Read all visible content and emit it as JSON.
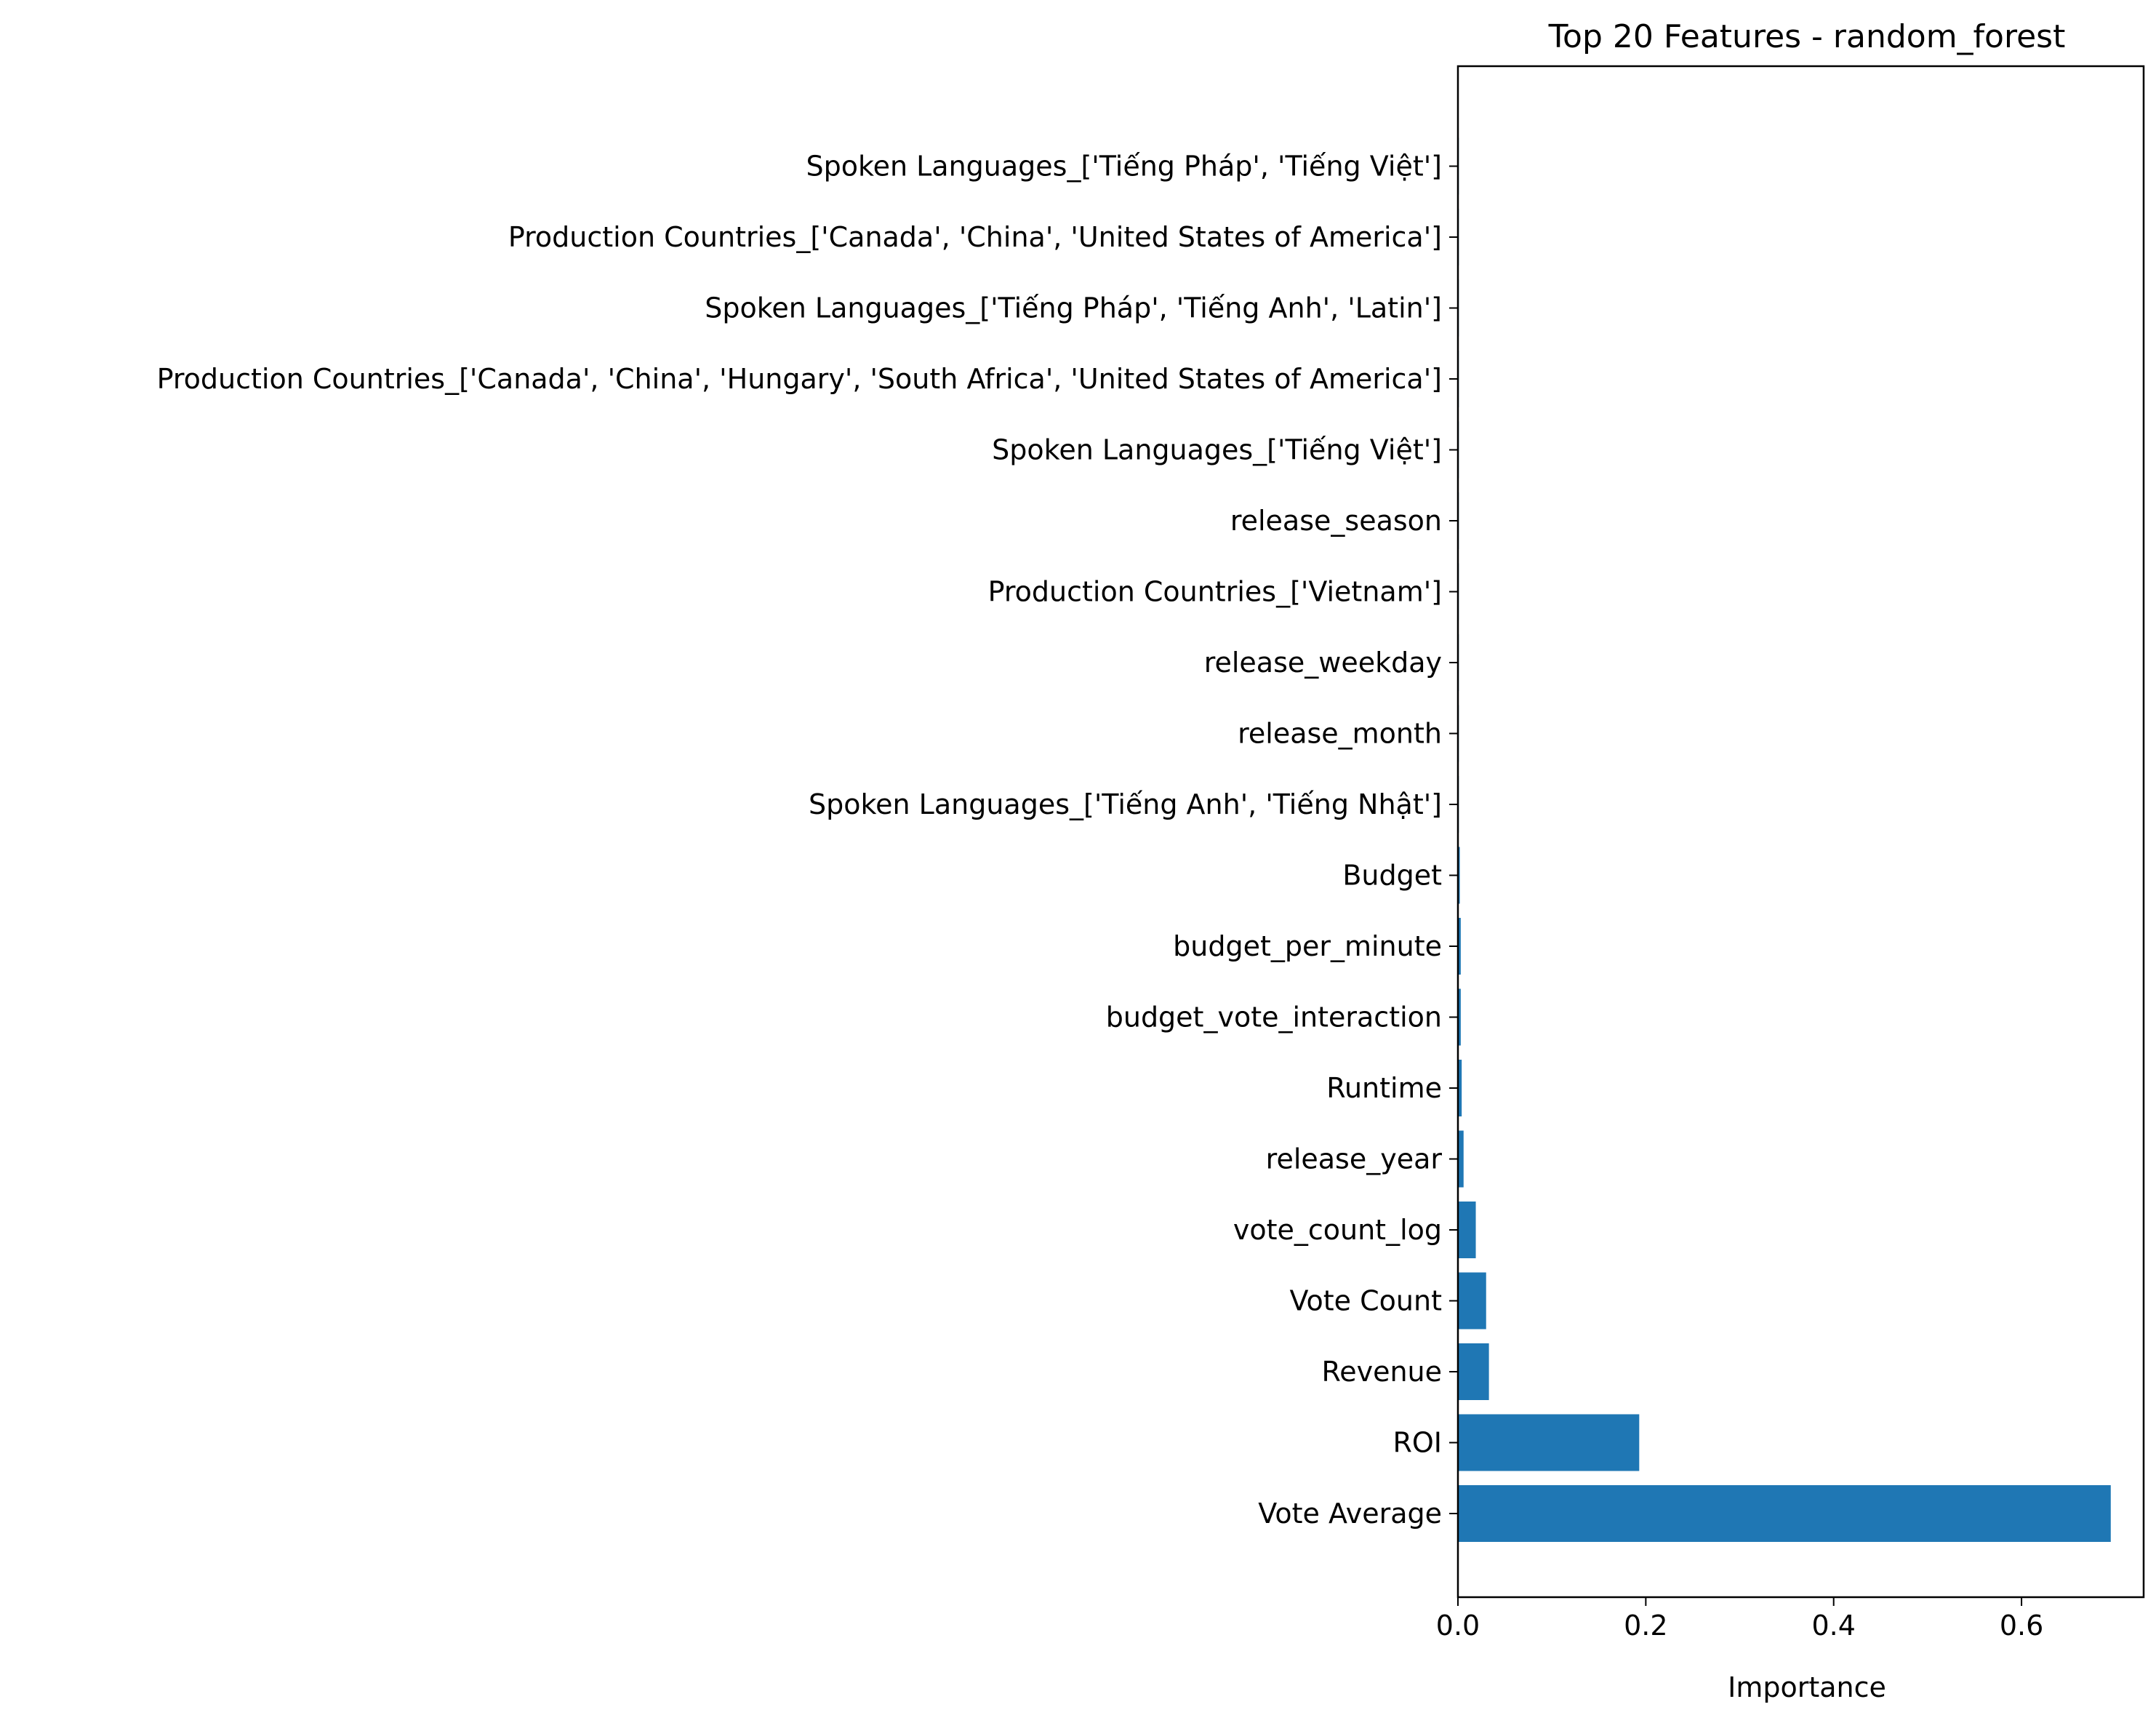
{
  "chart_data": {
    "type": "bar",
    "orientation": "horizontal",
    "title": "Top 20 Features - random_forest",
    "xlabel": "Importance",
    "ylabel": "",
    "xlim": [
      0,
      0.73
    ],
    "xticks": [
      0.0,
      0.2,
      0.4,
      0.6
    ],
    "xtick_labels": [
      "0.0",
      "0.2",
      "0.4",
      "0.6"
    ],
    "grid": false,
    "legend": null,
    "bar_color": "#1f77b4",
    "categories": [
      "Vote Average",
      "ROI",
      "Revenue",
      "Vote Count",
      "vote_count_log",
      "release_year",
      "Runtime",
      "budget_vote_interaction",
      "budget_per_minute",
      "Budget",
      "Spoken Languages_['Tiếng Anh', 'Tiếng Nhật']",
      "release_month",
      "release_weekday",
      "Production Countries_['Vietnam']",
      "release_season",
      "Spoken Languages_['Tiếng Việt']",
      "Production Countries_['Canada', 'China', 'Hungary', 'South Africa', 'United States of America']",
      "Spoken Languages_['Tiếng Pháp', 'Tiếng Anh', 'Latin']",
      "Production Countries_['Canada', 'China', 'United States of America']",
      "Spoken Languages_['Tiếng Pháp', 'Tiếng Việt']"
    ],
    "values": [
      0.695,
      0.193,
      0.033,
      0.03,
      0.019,
      0.006,
      0.004,
      0.003,
      0.003,
      0.002,
      0.0005,
      0.0004,
      0.0004,
      0.0003,
      0.0003,
      0.0002,
      0.0001,
      0.0001,
      0.0001,
      0.0001
    ]
  }
}
